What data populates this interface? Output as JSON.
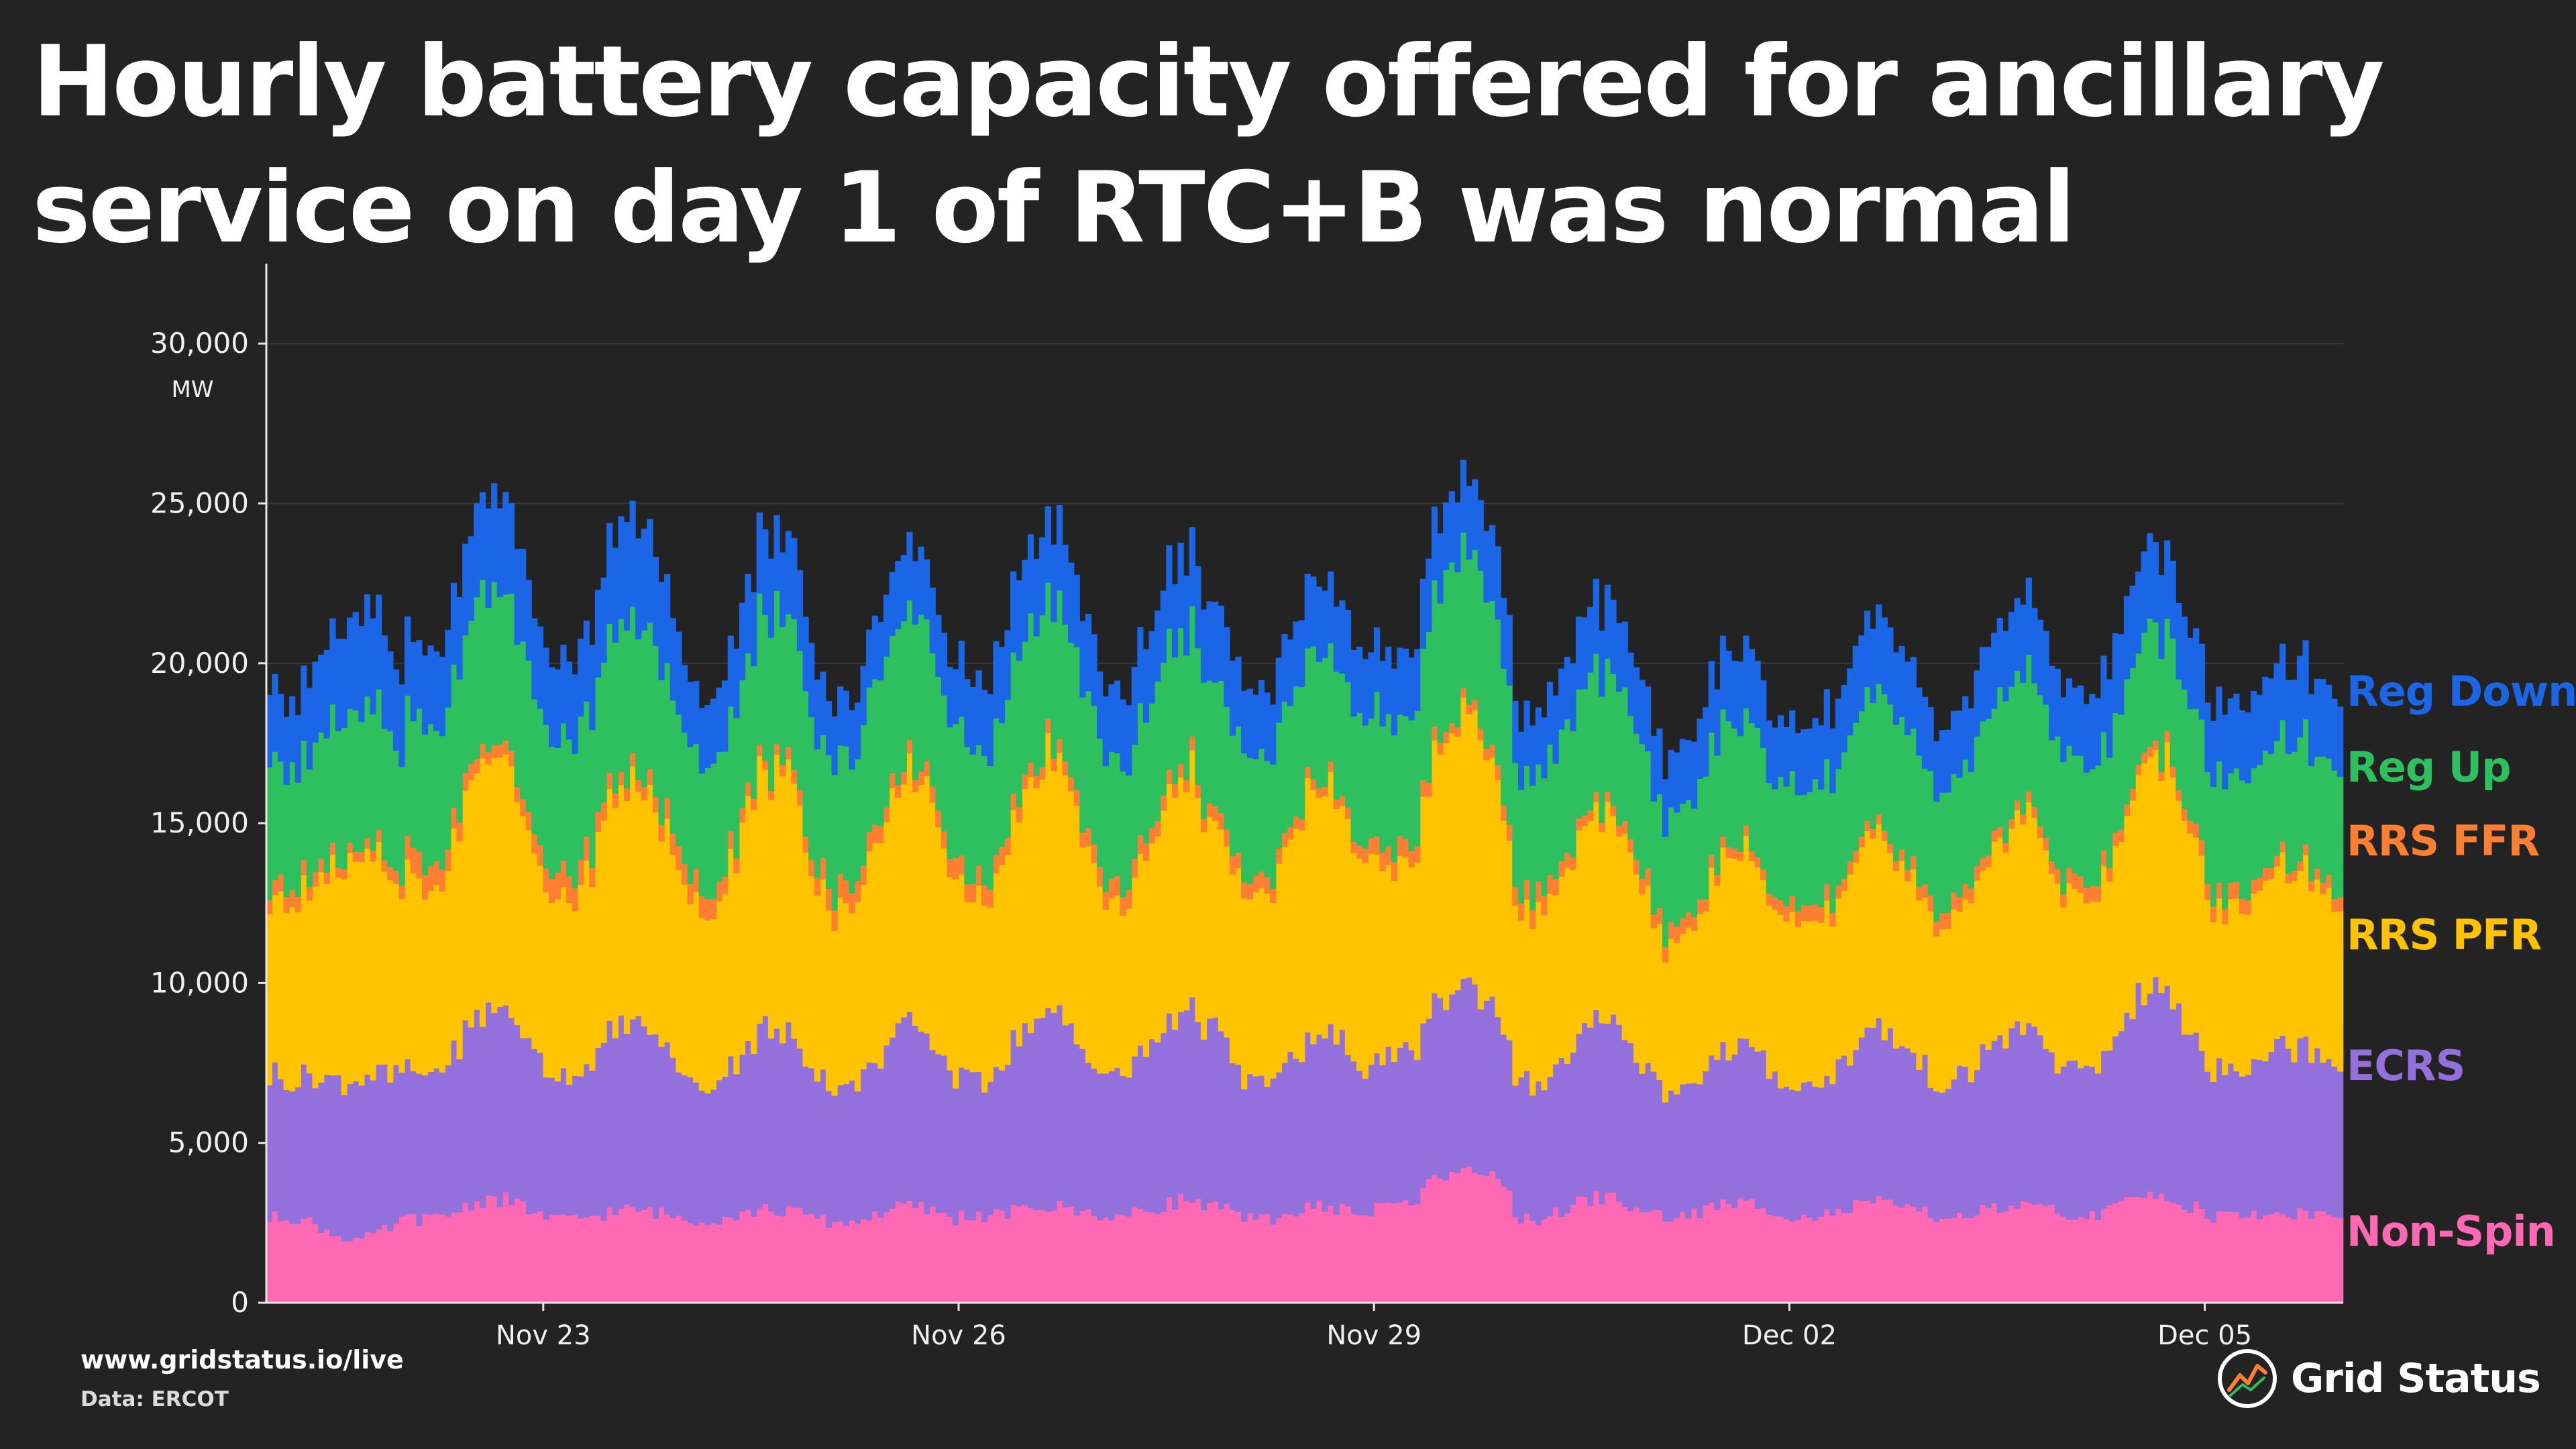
{
  "title": "Hourly battery capacity offered for ancillary service on day 1 of RTC+B was normal",
  "footer": {
    "url": "www.gridstatus.io/live",
    "source": "Data: ERCOT"
  },
  "brand": {
    "name": "Grid Status",
    "logo_icon": "grid-status-logo-icon"
  },
  "chart_data": {
    "type": "area",
    "subtype": "stacked-step",
    "frequency": "hourly",
    "ylabel": "MW",
    "ylim": [
      0,
      32500
    ],
    "yticks": [
      0,
      5000,
      10000,
      15000,
      20000,
      25000,
      30000
    ],
    "ytick_labels": [
      "0",
      "5,000",
      "10,000",
      "15,000",
      "20,000",
      "25,000",
      "30,000"
    ],
    "xtick_labels": [
      "Nov 23",
      "Nov 26",
      "Nov 29",
      "Dec 02",
      "Dec 05"
    ],
    "xticks_day": [
      2,
      5,
      8,
      11,
      14
    ],
    "x_range_days": [
      0,
      15
    ],
    "x_start": "Nov 21 00:00",
    "x_end": "Dec 06 00:00",
    "grid": "horizontal",
    "legend": "right, direct labels at series ends",
    "series_order": "bottom-to-top",
    "daily_profile": {
      "Non-Spin": {
        "day_peak": [
          2000,
          3250,
          2900,
          2900,
          3000,
          3000,
          3200,
          3000,
          4300,
          3300,
          3100,
          3100,
          3000,
          3400,
          2800
        ],
        "night_min": [
          2700,
          2600,
          2600,
          2600,
          2500,
          2700,
          2700,
          2600,
          3000,
          2600,
          2700,
          2700,
          2700,
          2700,
          2700
        ]
      },
      "ECRS": {
        "day_peak": [
          5000,
          6000,
          5800,
          5600,
          5500,
          6000,
          6000,
          5300,
          5800,
          5400,
          4800,
          5300,
          5500,
          6500,
          5300
        ],
        "night_min": [
          4400,
          4400,
          4400,
          4300,
          4200,
          4300,
          4400,
          4200,
          4500,
          4200,
          4000,
          4100,
          4200,
          4500,
          4600
        ]
      },
      "RRS PFR": {
        "day_peak": [
          6800,
          8000,
          7600,
          8000,
          7800,
          8000,
          7200,
          7800,
          8500,
          6500,
          6000,
          6000,
          6500,
          7200,
          5500
        ],
        "night_min": [
          5500,
          5800,
          5400,
          5600,
          5500,
          5500,
          5200,
          5600,
          5800,
          5200,
          4600,
          5000,
          5000,
          5200,
          5000
        ]
      },
      "RRS FFR": {
        "day_peak": [
          300,
          400,
          400,
          300,
          400,
          400,
          400,
          300,
          300,
          300,
          300,
          300,
          300,
          300,
          300
        ],
        "night_min": [
          500,
          800,
          800,
          700,
          700,
          600,
          600,
          500,
          600,
          600,
          500,
          500,
          500,
          500,
          500
        ]
      },
      "Reg Up": {
        "day_peak": [
          4200,
          4800,
          4700,
          4500,
          4700,
          4600,
          4200,
          4000,
          4900,
          4100,
          3900,
          4200,
          4200,
          3800,
          3800
        ],
        "night_min": [
          3800,
          4200,
          4100,
          4000,
          4000,
          4000,
          3800,
          3800,
          4100,
          3800,
          3400,
          3700,
          3800,
          3600,
          3700
        ]
      },
      "Reg Down": {
        "day_peak": [
          3000,
          3000,
          3200,
          2500,
          2000,
          2500,
          2500,
          2200,
          2300,
          2200,
          2200,
          2300,
          2300,
          2600,
          2400
        ],
        "night_min": [
          2200,
          2300,
          2300,
          2100,
          1800,
          2200,
          2200,
          2000,
          2000,
          1900,
          1900,
          2000,
          2000,
          2200,
          2200
        ]
      }
    },
    "series": [
      {
        "name": "Non-Spin",
        "color": "#ff69b4",
        "end_value": 2800
      },
      {
        "name": "ECRS",
        "color": "#9370db",
        "end_value": 4700
      },
      {
        "name": "RRS PFR",
        "color": "#ffc300",
        "end_value": 6000
      },
      {
        "name": "RRS FFR",
        "color": "#ff7f32",
        "end_value": 200
      },
      {
        "name": "Reg Up",
        "color": "#2ebf5f",
        "end_value": 4600
      },
      {
        "name": "Reg Down",
        "color": "#1a66e6",
        "end_value": 2400
      }
    ]
  }
}
